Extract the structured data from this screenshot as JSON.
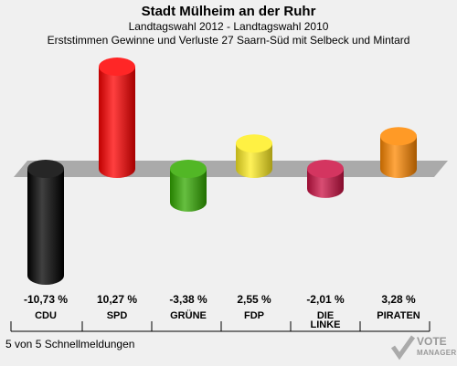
{
  "header": {
    "title": "Stadt Mülheim an der Ruhr",
    "subtitle1": "Landtagswahl 2012 - Landtagswahl 2010",
    "subtitle2": "Erststimmen Gewinne und Verluste 27 Saarn-Süd mit Selbeck und Mintard"
  },
  "footer": {
    "text": "5 von 5 Schnellmeldungen"
  },
  "logo": {
    "line1": "VOTE",
    "line2": "MANAGER"
  },
  "chart_data": {
    "type": "bar",
    "categories": [
      "CDU",
      "SPD",
      "GRÜNE",
      "FDP",
      "DIE LINKE",
      "PIRATEN"
    ],
    "values": [
      -10.73,
      10.27,
      -3.38,
      2.55,
      -2.01,
      3.28
    ],
    "value_labels": [
      "-10,73 %",
      "10,27 %",
      "-3,38 %",
      "2,55 %",
      "-2,01 %",
      "3,28 %"
    ],
    "colors": [
      "#000000",
      "#ff0000",
      "#33aa00",
      "#ffee22",
      "#cc1144",
      "#ff8800"
    ],
    "ylim": [
      -11,
      11
    ],
    "grid": false,
    "legend": "none"
  }
}
